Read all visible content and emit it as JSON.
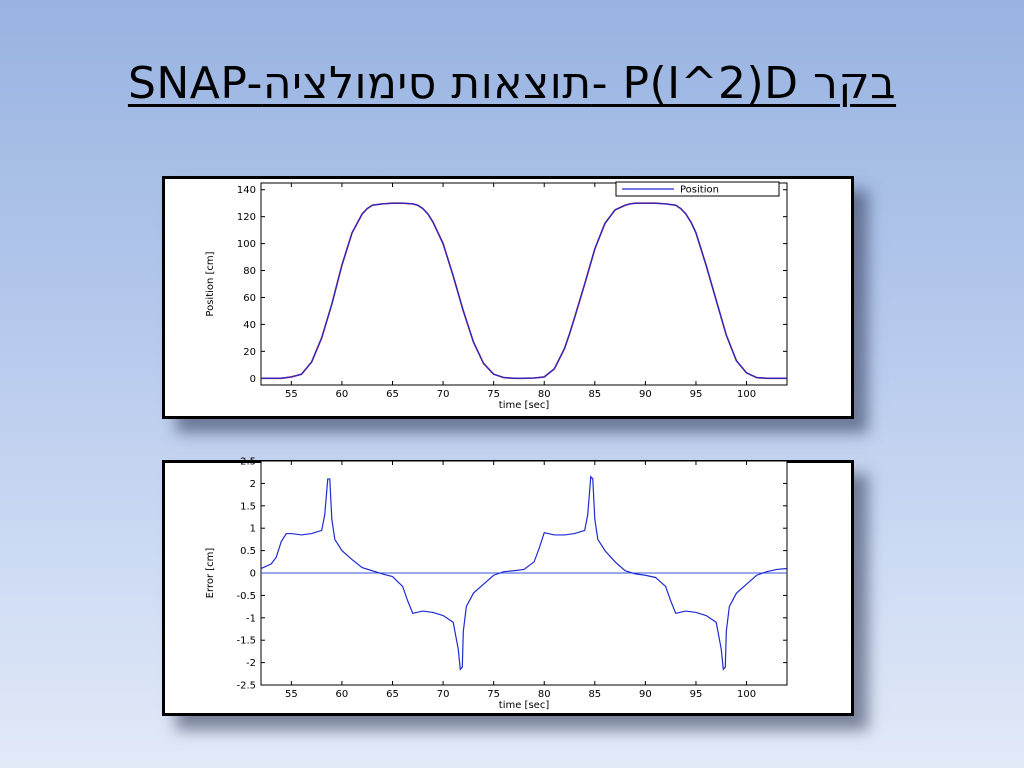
{
  "slide": {
    "title": "SNAP-תוצאות סימולציה- P(I^2)D בקר"
  },
  "colors": {
    "background_top": "#98b3e1",
    "background_bottom": "#e2eaf8",
    "position_line": "#1f2bd0",
    "reference_line": "#c0102e",
    "error_line": "#1f2bd0",
    "zero_line": "#3a52d9"
  },
  "chart_data": [
    {
      "type": "line",
      "title": "",
      "xlabel": "time [sec]",
      "ylabel": "Position [cm]",
      "xlim": [
        52,
        104
      ],
      "ylim": [
        -5,
        145
      ],
      "xticks": [
        55,
        60,
        65,
        70,
        75,
        80,
        85,
        90,
        95,
        100
      ],
      "yticks": [
        0,
        20,
        40,
        60,
        80,
        100,
        120,
        140
      ],
      "grid": false,
      "legend": {
        "position": "top-right",
        "entries": [
          "Position"
        ]
      },
      "series": [
        {
          "name": "Position",
          "color": "#1f2bd0",
          "x": [
            52,
            54,
            55,
            56,
            57,
            58,
            59,
            60,
            61,
            62,
            62.5,
            63,
            64,
            65,
            66,
            67,
            67.5,
            68,
            68.5,
            69,
            70,
            71,
            72,
            73,
            74,
            75,
            76,
            77,
            77.5,
            78,
            79,
            80,
            81,
            82,
            82.5,
            83,
            84,
            85,
            86,
            87,
            88,
            88.5,
            89,
            90,
            91,
            92,
            93,
            93.5,
            94,
            94.5,
            95,
            96,
            97,
            98,
            99,
            100,
            101,
            102,
            103,
            104
          ],
          "y": [
            0,
            0,
            1,
            3,
            12,
            30,
            55,
            84,
            108,
            122,
            126,
            128.5,
            129.5,
            130,
            130,
            129.5,
            128.5,
            126,
            122,
            116,
            100,
            76,
            50,
            27,
            11,
            3,
            0.5,
            0,
            0,
            0,
            0.2,
            1,
            7,
            22,
            33,
            45,
            70,
            96,
            115,
            125,
            128.5,
            129.5,
            130,
            130,
            130,
            129.5,
            128.5,
            126,
            122,
            116,
            108,
            84,
            58,
            32,
            13,
            4,
            0.5,
            0,
            0,
            0
          ]
        }
      ]
    },
    {
      "type": "line",
      "title": "",
      "xlabel": "time [sec]",
      "ylabel": "Error [cm]",
      "xlim": [
        52,
        104
      ],
      "ylim": [
        -2.5,
        2.5
      ],
      "xticks": [
        55,
        60,
        65,
        70,
        75,
        80,
        85,
        90,
        95,
        100
      ],
      "yticks": [
        -2.5,
        -2,
        -1.5,
        -1,
        -0.5,
        0,
        0.5,
        1,
        1.5,
        2,
        2.5
      ],
      "grid": false,
      "series": [
        {
          "name": "",
          "color": "#1f2bd0",
          "x": [
            52,
            53,
            53.5,
            54,
            54.5,
            55,
            56,
            57,
            58,
            58.3,
            58.6,
            58.8,
            59,
            59.3,
            60,
            61,
            62,
            63,
            64,
            65,
            66,
            66.5,
            67,
            68,
            69,
            70,
            71,
            71.5,
            71.7,
            71.9,
            72,
            72.3,
            73,
            74,
            75,
            76,
            77,
            78,
            79,
            79.5,
            80,
            81,
            82,
            83,
            84,
            84.3,
            84.6,
            84.8,
            85,
            85.3,
            86,
            87,
            88,
            89,
            90,
            91,
            92,
            92.5,
            93,
            94,
            95,
            96,
            97,
            97.5,
            97.7,
            97.9,
            98,
            98.3,
            99,
            100,
            101,
            102,
            103,
            104
          ],
          "y": [
            0.1,
            0.2,
            0.35,
            0.7,
            0.88,
            0.88,
            0.85,
            0.88,
            0.95,
            1.3,
            2.1,
            2.1,
            1.2,
            0.75,
            0.5,
            0.3,
            0.12,
            0.05,
            -0.02,
            -0.08,
            -0.3,
            -0.62,
            -0.9,
            -0.85,
            -0.88,
            -0.95,
            -1.1,
            -1.7,
            -2.15,
            -2.1,
            -1.3,
            -0.75,
            -0.45,
            -0.25,
            -0.05,
            0.03,
            0.05,
            0.08,
            0.25,
            0.55,
            0.9,
            0.85,
            0.85,
            0.88,
            0.95,
            1.3,
            2.15,
            2.1,
            1.2,
            0.75,
            0.5,
            0.25,
            0.05,
            -0.02,
            -0.05,
            -0.1,
            -0.3,
            -0.62,
            -0.9,
            -0.85,
            -0.88,
            -0.95,
            -1.1,
            -1.7,
            -2.15,
            -2.1,
            -1.3,
            -0.75,
            -0.45,
            -0.25,
            -0.05,
            0.03,
            0.08,
            0.1
          ]
        }
      ]
    }
  ]
}
